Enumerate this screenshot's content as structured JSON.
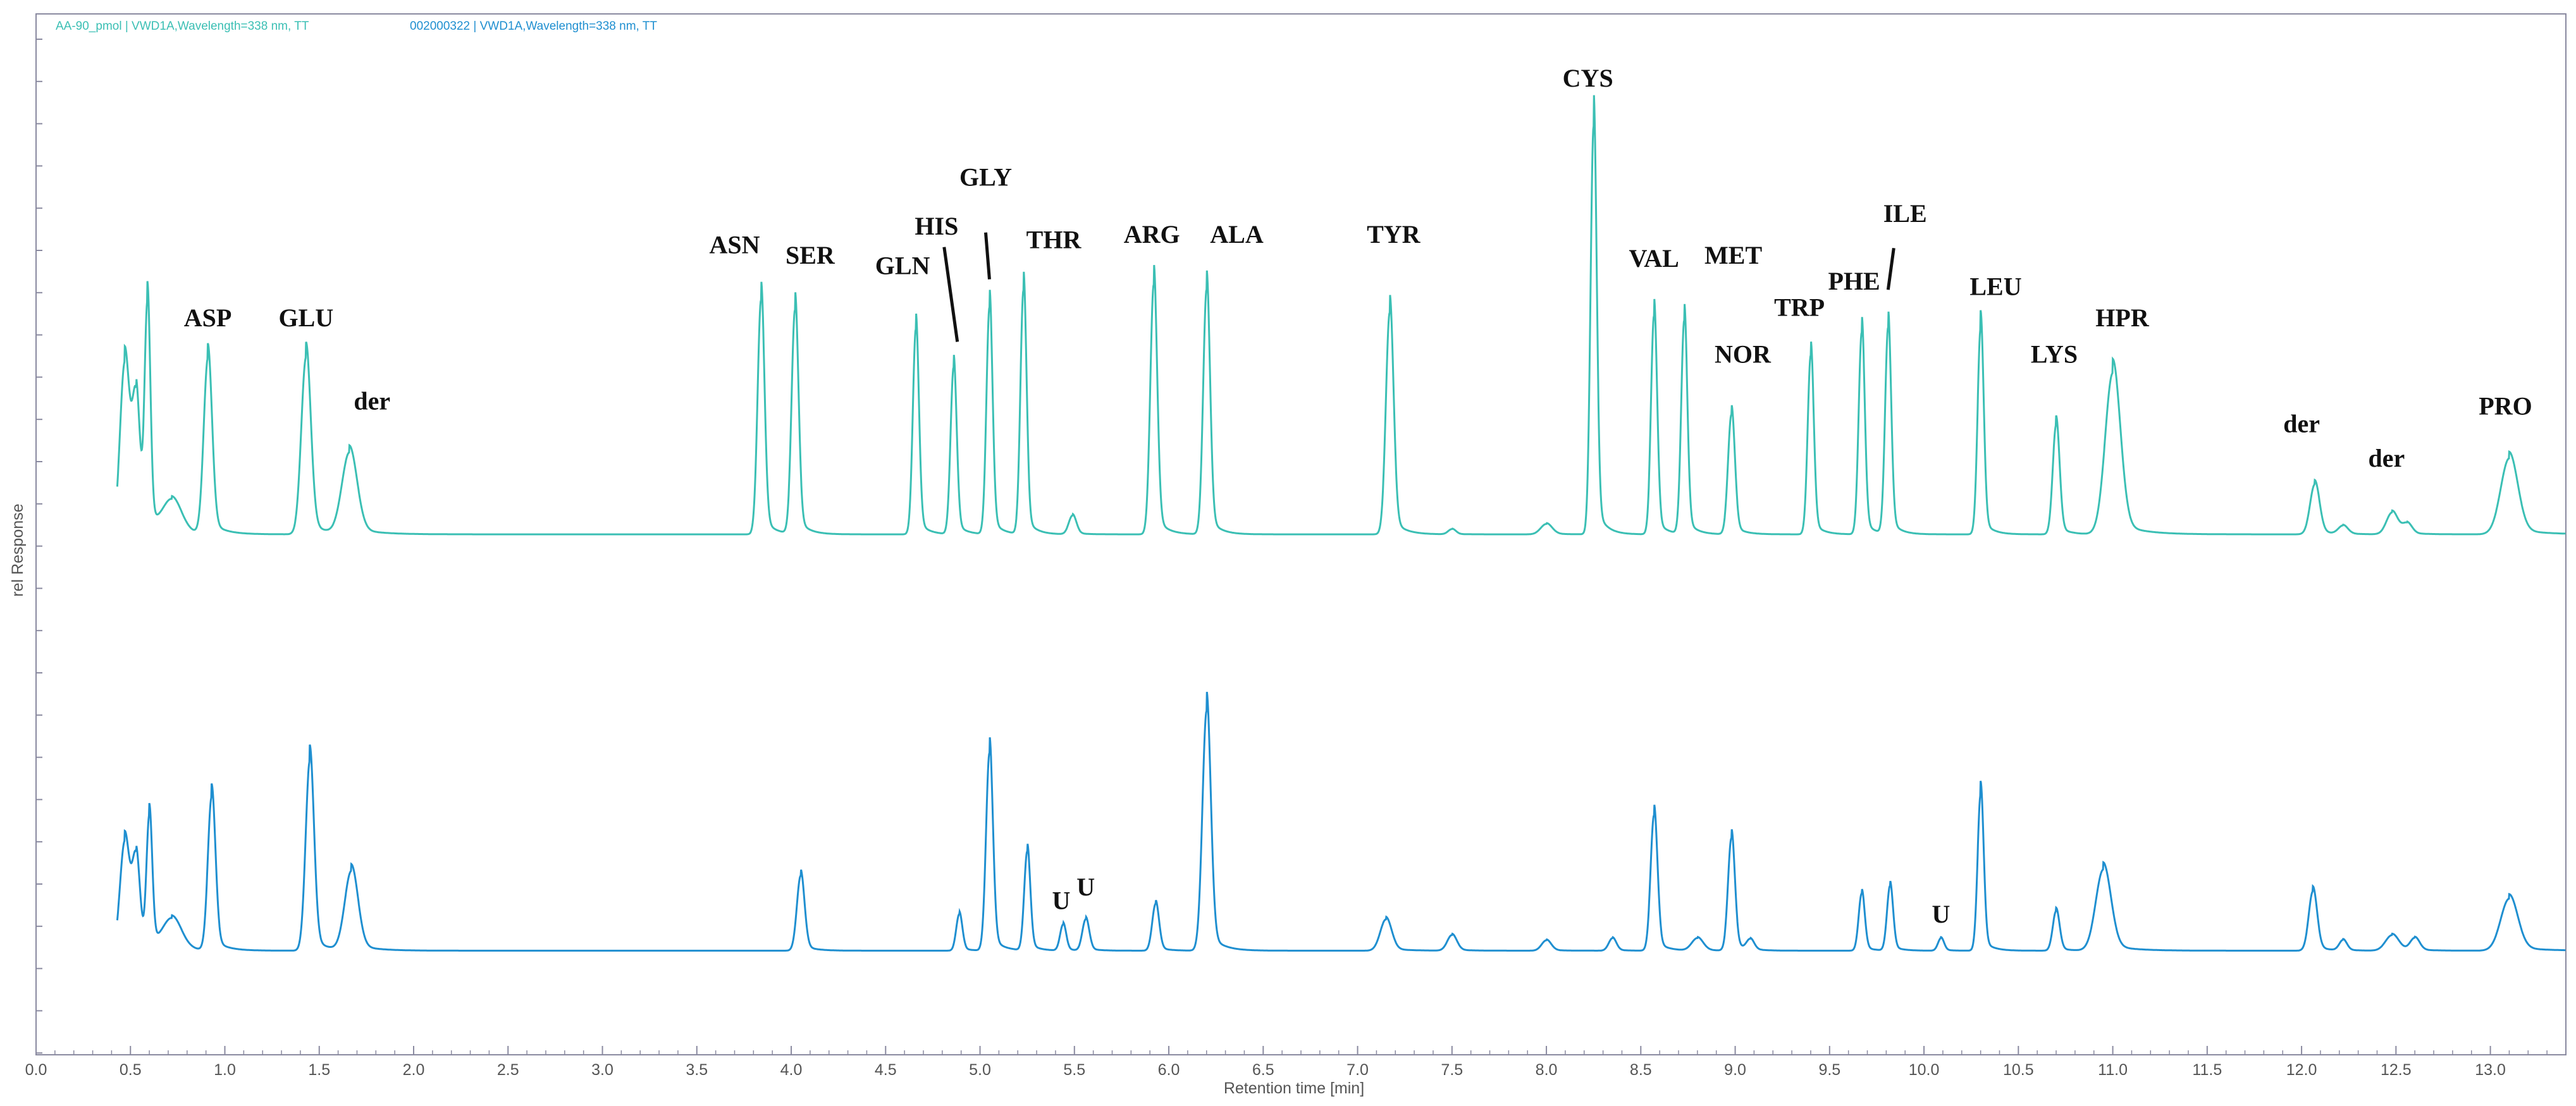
{
  "colors": {
    "trace_top": "#3bbfb4",
    "trace_bottom": "#1f8fd0",
    "axis": "#8a8aa0",
    "label": "#111111"
  },
  "chart_data": {
    "type": "line",
    "legend_placement": "top-left",
    "legend": [
      {
        "text": "AA-90_pmol | VWD1A,Wavelength=338 nm, TT",
        "color": "#3bbfb4"
      },
      {
        "text": "002000322 | VWD1A,Wavelength=338 nm, TT",
        "color": "#1f8fd0"
      }
    ],
    "xlabel": "Retention time [min]",
    "ylabel": "rel Response",
    "xlim": [
      0,
      13.4
    ],
    "ylim": [
      0,
      1
    ],
    "x_ticks": [
      "0.0",
      "0.5",
      "1.0",
      "1.5",
      "2.0",
      "2.5",
      "3.0",
      "3.5",
      "4.0",
      "4.5",
      "5.0",
      "5.5",
      "6.0",
      "6.5",
      "7.0",
      "7.5",
      "8.0",
      "8.5",
      "9.0",
      "9.5",
      "10.0",
      "10.5",
      "11.0",
      "11.5",
      "12.0",
      "12.5",
      "13.0"
    ],
    "grid": false,
    "series": [
      {
        "name": "AA-90_pmol | VWD1A,Wavelength=338 nm, TT",
        "baseline": 0.5,
        "peaks": [
          {
            "x": 0.47,
            "h": 0.165,
            "w": 0.025
          },
          {
            "x": 0.53,
            "h": 0.125,
            "w": 0.02
          },
          {
            "x": 0.59,
            "h": 0.215,
            "w": 0.015
          },
          {
            "x": 0.72,
            "h": 0.032,
            "w": 0.05
          },
          {
            "x": 0.91,
            "h": 0.168,
            "w": 0.022
          },
          {
            "x": 1.43,
            "h": 0.17,
            "w": 0.025
          },
          {
            "x": 1.66,
            "h": 0.078,
            "w": 0.04
          },
          {
            "x": 3.84,
            "h": 0.225,
            "w": 0.018
          },
          {
            "x": 4.02,
            "h": 0.215,
            "w": 0.018
          },
          {
            "x": 4.66,
            "h": 0.197,
            "w": 0.016
          },
          {
            "x": 4.86,
            "h": 0.16,
            "w": 0.016
          },
          {
            "x": 5.05,
            "h": 0.218,
            "w": 0.016
          },
          {
            "x": 5.23,
            "h": 0.234,
            "w": 0.016
          },
          {
            "x": 5.49,
            "h": 0.018,
            "w": 0.02
          },
          {
            "x": 5.92,
            "h": 0.24,
            "w": 0.018
          },
          {
            "x": 6.2,
            "h": 0.235,
            "w": 0.018
          },
          {
            "x": 7.17,
            "h": 0.213,
            "w": 0.02
          },
          {
            "x": 7.5,
            "h": 0.005,
            "w": 0.02
          },
          {
            "x": 8.0,
            "h": 0.01,
            "w": 0.03
          },
          {
            "x": 8.25,
            "h": 0.392,
            "w": 0.016
          },
          {
            "x": 8.57,
            "h": 0.21,
            "w": 0.016
          },
          {
            "x": 8.73,
            "h": 0.205,
            "w": 0.016
          },
          {
            "x": 8.98,
            "h": 0.115,
            "w": 0.018
          },
          {
            "x": 9.4,
            "h": 0.172,
            "w": 0.016
          },
          {
            "x": 9.67,
            "h": 0.194,
            "w": 0.016
          },
          {
            "x": 9.81,
            "h": 0.198,
            "w": 0.016
          },
          {
            "x": 10.3,
            "h": 0.198,
            "w": 0.016
          },
          {
            "x": 10.7,
            "h": 0.105,
            "w": 0.018
          },
          {
            "x": 11.0,
            "h": 0.155,
            "w": 0.04
          },
          {
            "x": 12.07,
            "h": 0.048,
            "w": 0.025
          },
          {
            "x": 12.22,
            "h": 0.008,
            "w": 0.025
          },
          {
            "x": 12.48,
            "h": 0.021,
            "w": 0.03
          },
          {
            "x": 12.56,
            "h": 0.01,
            "w": 0.025
          },
          {
            "x": 13.1,
            "h": 0.073,
            "w": 0.045
          }
        ]
      },
      {
        "name": "002000322 | VWD1A,Wavelength=338 nm, TT",
        "baseline": 0.1,
        "peaks": [
          {
            "x": 0.47,
            "h": 0.105,
            "w": 0.025
          },
          {
            "x": 0.53,
            "h": 0.085,
            "w": 0.02
          },
          {
            "x": 0.6,
            "h": 0.125,
            "w": 0.015
          },
          {
            "x": 0.72,
            "h": 0.03,
            "w": 0.05
          },
          {
            "x": 0.93,
            "h": 0.147,
            "w": 0.02
          },
          {
            "x": 1.45,
            "h": 0.182,
            "w": 0.022
          },
          {
            "x": 1.67,
            "h": 0.076,
            "w": 0.035
          },
          {
            "x": 4.05,
            "h": 0.072,
            "w": 0.02
          },
          {
            "x": 4.89,
            "h": 0.035,
            "w": 0.016
          },
          {
            "x": 5.05,
            "h": 0.19,
            "w": 0.018
          },
          {
            "x": 5.25,
            "h": 0.095,
            "w": 0.016
          },
          {
            "x": 5.44,
            "h": 0.025,
            "w": 0.016
          },
          {
            "x": 5.56,
            "h": 0.03,
            "w": 0.018
          },
          {
            "x": 5.93,
            "h": 0.045,
            "w": 0.018
          },
          {
            "x": 6.2,
            "h": 0.23,
            "w": 0.022
          },
          {
            "x": 7.15,
            "h": 0.03,
            "w": 0.03
          },
          {
            "x": 7.5,
            "h": 0.015,
            "w": 0.025
          },
          {
            "x": 8.0,
            "h": 0.01,
            "w": 0.025
          },
          {
            "x": 8.35,
            "h": 0.012,
            "w": 0.02
          },
          {
            "x": 8.57,
            "h": 0.13,
            "w": 0.018
          },
          {
            "x": 8.8,
            "h": 0.012,
            "w": 0.03
          },
          {
            "x": 8.98,
            "h": 0.108,
            "w": 0.018
          },
          {
            "x": 9.08,
            "h": 0.01,
            "w": 0.02
          },
          {
            "x": 9.67,
            "h": 0.055,
            "w": 0.016
          },
          {
            "x": 9.82,
            "h": 0.062,
            "w": 0.016
          },
          {
            "x": 10.09,
            "h": 0.012,
            "w": 0.016
          },
          {
            "x": 10.3,
            "h": 0.15,
            "w": 0.016
          },
          {
            "x": 10.7,
            "h": 0.038,
            "w": 0.018
          },
          {
            "x": 10.95,
            "h": 0.078,
            "w": 0.04
          },
          {
            "x": 12.06,
            "h": 0.057,
            "w": 0.022
          },
          {
            "x": 12.22,
            "h": 0.01,
            "w": 0.02
          },
          {
            "x": 12.48,
            "h": 0.015,
            "w": 0.035
          },
          {
            "x": 12.6,
            "h": 0.012,
            "w": 0.025
          },
          {
            "x": 13.1,
            "h": 0.05,
            "w": 0.045
          }
        ]
      }
    ],
    "annotations": [
      {
        "text": "ASP",
        "x": 0.91,
        "y": 0.7
      },
      {
        "text": "GLU",
        "x": 1.43,
        "y": 0.7
      },
      {
        "text": "der",
        "x": 1.78,
        "y": 0.62
      },
      {
        "text": "ASN",
        "x": 3.7,
        "y": 0.77
      },
      {
        "text": "SER",
        "x": 4.1,
        "y": 0.76
      },
      {
        "text": "GLN",
        "x": 4.59,
        "y": 0.75
      },
      {
        "text": "HIS",
        "x": 4.77,
        "y": 0.788
      },
      {
        "text": "GLY",
        "x": 5.03,
        "y": 0.835
      },
      {
        "text": "THR",
        "x": 5.39,
        "y": 0.775
      },
      {
        "text": "ARG",
        "x": 5.91,
        "y": 0.78
      },
      {
        "text": "ALA",
        "x": 6.36,
        "y": 0.78
      },
      {
        "text": "TYR",
        "x": 7.19,
        "y": 0.78
      },
      {
        "text": "CYS",
        "x": 8.22,
        "y": 0.93
      },
      {
        "text": "VAL",
        "x": 8.57,
        "y": 0.757
      },
      {
        "text": "MET",
        "x": 8.99,
        "y": 0.76
      },
      {
        "text": "NOR",
        "x": 9.04,
        "y": 0.665
      },
      {
        "text": "TRP",
        "x": 9.34,
        "y": 0.71
      },
      {
        "text": "PHE",
        "x": 9.63,
        "y": 0.735
      },
      {
        "text": "ILE",
        "x": 9.9,
        "y": 0.8
      },
      {
        "text": "LEU",
        "x": 10.38,
        "y": 0.73
      },
      {
        "text": "LYS",
        "x": 10.69,
        "y": 0.665
      },
      {
        "text": "HPR",
        "x": 11.05,
        "y": 0.7
      },
      {
        "text": "der",
        "x": 12.0,
        "y": 0.598
      },
      {
        "text": "der",
        "x": 12.45,
        "y": 0.565
      },
      {
        "text": "PRO",
        "x": 13.08,
        "y": 0.615
      },
      {
        "text": "U",
        "x": 5.43,
        "y": 0.14
      },
      {
        "text": "U",
        "x": 5.56,
        "y": 0.153
      },
      {
        "text": "U",
        "x": 10.09,
        "y": 0.127
      }
    ]
  }
}
